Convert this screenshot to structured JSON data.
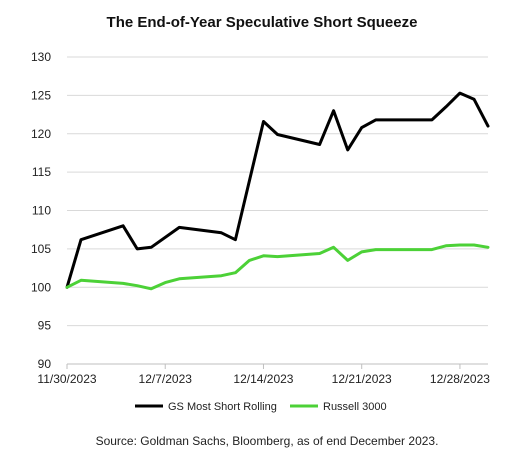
{
  "chart_data": {
    "type": "line",
    "title": "The End-of-Year Speculative Short Squeeze",
    "xlabel": "",
    "ylabel": "",
    "x_ticks": [
      {
        "label": "11/30/2023",
        "day": 0
      },
      {
        "label": "12/7/2023",
        "day": 7
      },
      {
        "label": "12/14/2023",
        "day": 14
      },
      {
        "label": "12/21/2023",
        "day": 21
      },
      {
        "label": "12/28/2023",
        "day": 28
      }
    ],
    "xlim": [
      0,
      30
    ],
    "ylim": [
      90,
      130
    ],
    "y_ticks": [
      90,
      95,
      100,
      105,
      110,
      115,
      120,
      125,
      130
    ],
    "grid": "horizontal",
    "legend_position": "bottom",
    "series": [
      {
        "name": "GS Most Short  Rolling",
        "color": "#000000",
        "points": [
          [
            0,
            100.0
          ],
          [
            1,
            106.2
          ],
          [
            4,
            108.0
          ],
          [
            5,
            105.0
          ],
          [
            6,
            105.2
          ],
          [
            8,
            107.8
          ],
          [
            11,
            107.1
          ],
          [
            12,
            106.2
          ],
          [
            14,
            121.6
          ],
          [
            15,
            119.9
          ],
          [
            18,
            118.6
          ],
          [
            19,
            123.0
          ],
          [
            20,
            117.9
          ],
          [
            21,
            120.8
          ],
          [
            22,
            121.8
          ],
          [
            26,
            121.8
          ],
          [
            27,
            123.5
          ],
          [
            28,
            125.3
          ],
          [
            29,
            124.5
          ],
          [
            30,
            121.0
          ]
        ]
      },
      {
        "name": "Russell 3000",
        "color": "#4cd137",
        "points": [
          [
            0,
            100.0
          ],
          [
            1,
            100.9
          ],
          [
            4,
            100.5
          ],
          [
            5,
            100.2
          ],
          [
            6,
            99.8
          ],
          [
            7,
            100.6
          ],
          [
            8,
            101.1
          ],
          [
            11,
            101.5
          ],
          [
            12,
            101.9
          ],
          [
            13,
            103.5
          ],
          [
            14,
            104.1
          ],
          [
            15,
            104.0
          ],
          [
            18,
            104.4
          ],
          [
            19,
            105.2
          ],
          [
            20,
            103.5
          ],
          [
            21,
            104.6
          ],
          [
            22,
            104.9
          ],
          [
            26,
            104.9
          ],
          [
            27,
            105.4
          ],
          [
            28,
            105.5
          ],
          [
            29,
            105.5
          ],
          [
            30,
            105.2
          ]
        ]
      }
    ]
  },
  "footer": {
    "source": "Source: Goldman Sachs, Bloomberg, as of end December 2023."
  }
}
